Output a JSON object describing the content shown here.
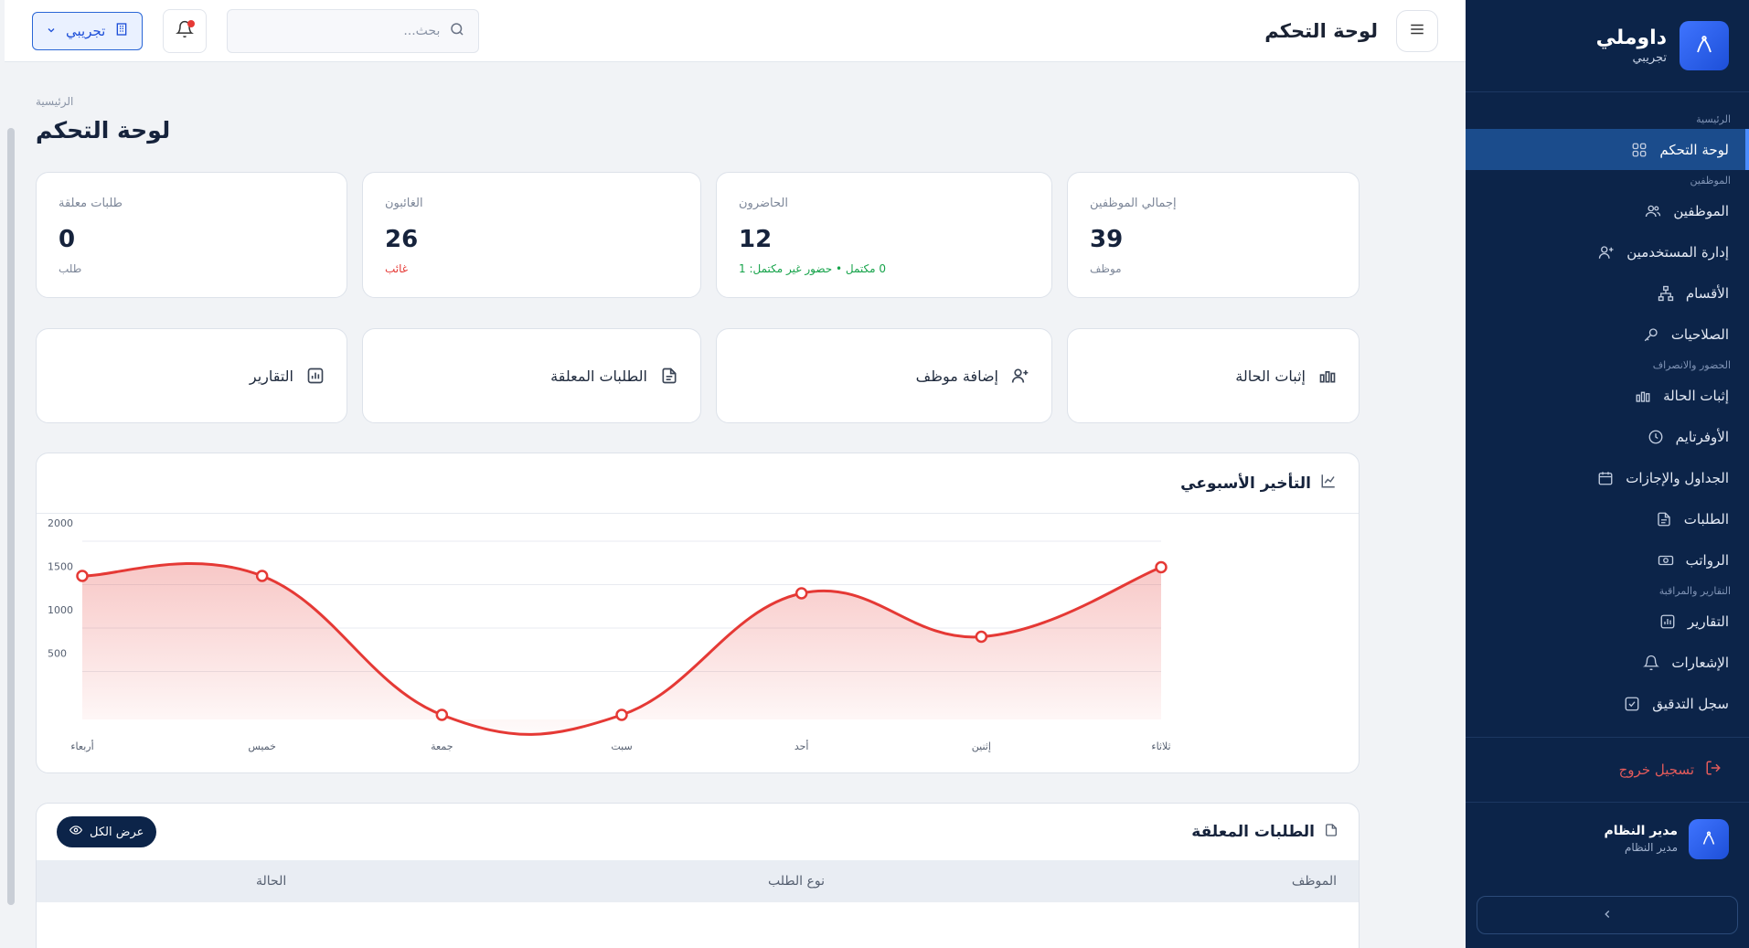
{
  "brand": {
    "name": "داوملي",
    "sub": "تجريبي"
  },
  "sidebar": {
    "sections": [
      {
        "title": "الرئيسية",
        "items": [
          {
            "label": "لوحة التحكم",
            "icon": "grid-icon",
            "active": true
          }
        ]
      },
      {
        "title": "الموظفين",
        "items": [
          {
            "label": "الموظفين",
            "icon": "users-icon"
          },
          {
            "label": "إدارة المستخدمين",
            "icon": "user-plus-icon"
          },
          {
            "label": "الأقسام",
            "icon": "sitemap-icon"
          },
          {
            "label": "الصلاحيات",
            "icon": "key-icon"
          }
        ]
      },
      {
        "title": "الحضور والانصراف",
        "items": [
          {
            "label": "إثبات الحالة",
            "icon": "bars-icon"
          },
          {
            "label": "الأوفرتايم",
            "icon": "clock-icon"
          },
          {
            "label": "الجداول والإجازات",
            "icon": "calendar-icon"
          },
          {
            "label": "الطلبات",
            "icon": "document-icon"
          },
          {
            "label": "الرواتب",
            "icon": "money-icon"
          }
        ]
      },
      {
        "title": "التقارير والمراقبة",
        "items": [
          {
            "label": "التقارير",
            "icon": "report-icon"
          },
          {
            "label": "الإشعارات",
            "icon": "bell-icon"
          },
          {
            "label": "سجل التدقيق",
            "icon": "checklist-icon"
          }
        ]
      }
    ],
    "logout": "تسجيل خروج",
    "user": {
      "name": "مدير النظام",
      "role": "مدير النظام"
    }
  },
  "topbar": {
    "title": "لوحة التحكم",
    "search_placeholder": "بحث...",
    "company": "تجريبي"
  },
  "page": {
    "breadcrumb": "الرئيسية",
    "title": "لوحة التحكم"
  },
  "stats": [
    {
      "label": "إجمالي الموظفين",
      "value": "39",
      "sub": "موظف",
      "tone": "muted"
    },
    {
      "label": "الحاضرون",
      "value": "12",
      "sub": "0 مكتمل • حضور غير مكتمل: 1",
      "tone": "green"
    },
    {
      "label": "الغائبون",
      "value": "26",
      "sub": "غائب",
      "tone": "red"
    },
    {
      "label": "طلبات معلقة",
      "value": "0",
      "sub": "طلب",
      "tone": "muted"
    }
  ],
  "actions": [
    {
      "label": "إثبات الحالة",
      "icon": "bars-icon"
    },
    {
      "label": "إضافة موظف",
      "icon": "user-plus-icon"
    },
    {
      "label": "الطلبات المعلقة",
      "icon": "document-icon"
    },
    {
      "label": "التقارير",
      "icon": "report-icon"
    }
  ],
  "chart": {
    "title": "التأخير الأسبوعي",
    "icon": "line-chart-icon"
  },
  "chart_data": {
    "type": "area",
    "title": "التأخير الأسبوعي",
    "categories": [
      "أربعاء",
      "خميس",
      "جمعة",
      "سبت",
      "أحد",
      "إثنين",
      "ثلاثاء"
    ],
    "series": [
      {
        "values": [
          1600,
          1600,
          0,
          0,
          1400,
          900,
          1700
        ]
      }
    ],
    "yticks": [
      2000,
      1500,
      1000,
      500
    ],
    "ylim": [
      0,
      2000
    ],
    "color": "#e53935",
    "grid": true
  },
  "requests": {
    "title": "الطلبات المعلقة",
    "view_all": "عرض الكل",
    "columns": [
      "الموظف",
      "نوع الطلب",
      "الحالة"
    ]
  }
}
